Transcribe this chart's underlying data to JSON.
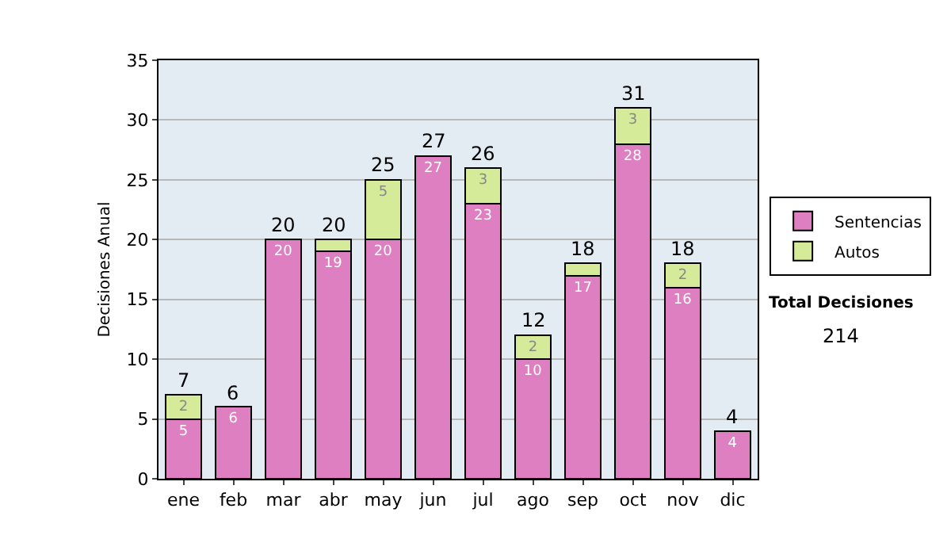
{
  "chart_data": {
    "type": "bar",
    "stacked": true,
    "ylabel": "Decisiones Anual",
    "categories": [
      "ene",
      "feb",
      "mar",
      "abr",
      "may",
      "jun",
      "jul",
      "ago",
      "sep",
      "oct",
      "nov",
      "dic"
    ],
    "series": [
      {
        "name": "Sentencias",
        "color": "#dd7fc0",
        "values": [
          5,
          6,
          20,
          19,
          20,
          27,
          23,
          10,
          17,
          28,
          16,
          4
        ],
        "value_labels": [
          "5",
          "6",
          "20",
          "19",
          "20",
          "27",
          "23",
          "10",
          "17",
          "28",
          "16",
          "4"
        ]
      },
      {
        "name": "Autos",
        "color": "#d5eb9a",
        "values": [
          2,
          0,
          0,
          1,
          5,
          0,
          3,
          2,
          1,
          3,
          2,
          0
        ],
        "value_labels": [
          "2",
          null,
          null,
          null,
          "5",
          null,
          "3",
          "2",
          null,
          "3",
          "2",
          null
        ]
      }
    ],
    "totals": [
      "7",
      "6",
      "20",
      "20",
      "25",
      "27",
      "26",
      "12",
      "18",
      "31",
      "18",
      "4"
    ],
    "ylim": [
      0,
      35
    ],
    "yticks": [
      0,
      5,
      10,
      15,
      20,
      25,
      30,
      35
    ],
    "grid": "y",
    "legend": "right",
    "annotations": [
      "Total Decisiones",
      "214"
    ]
  }
}
